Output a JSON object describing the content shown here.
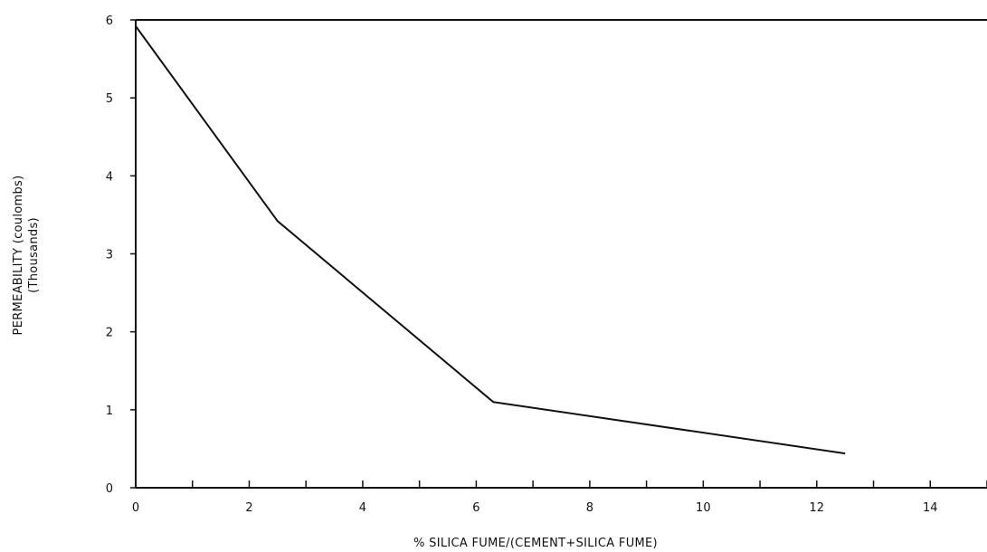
{
  "chart_data": {
    "type": "line",
    "title": "",
    "xlabel": "% SILICA FUME/(CEMENT+SILICA FUME)",
    "ylabel": "PERMEABILITY (coulombs)",
    "ylabel_sub": "(Thousands)",
    "xlim": [
      0,
      15
    ],
    "ylim": [
      0,
      6
    ],
    "x_ticks": [
      0,
      2,
      4,
      6,
      8,
      10,
      12,
      14
    ],
    "y_ticks": [
      0,
      1,
      2,
      3,
      4,
      5,
      6
    ],
    "grid": false,
    "series": [
      {
        "x": [
          0,
          2.5,
          6.3,
          12.5
        ],
        "y": [
          5.92,
          3.42,
          1.1,
          0.44
        ]
      }
    ]
  }
}
